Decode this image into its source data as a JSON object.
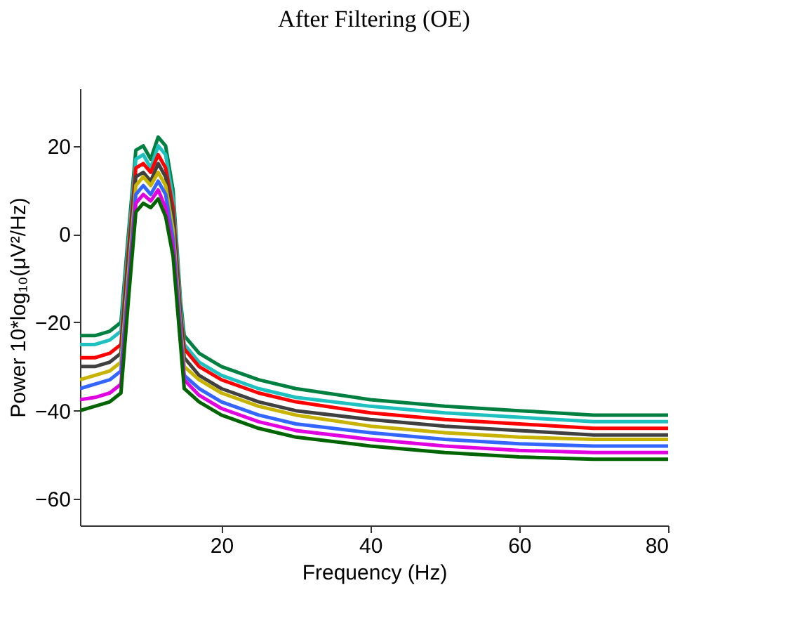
{
  "chart_data": {
    "type": "line",
    "title": "After Filtering (OE)",
    "xlabel": "Frequency (Hz)",
    "ylabel": "Power 10*log₁₀(μV²/Hz)",
    "x": [
      1,
      3,
      5,
      6.5,
      7.5,
      8.5,
      9.5,
      10.5,
      11.5,
      12.5,
      13.5,
      14.5,
      15,
      17,
      20,
      25,
      30,
      40,
      50,
      60,
      70,
      80
    ],
    "series": [
      {
        "color": "#008040",
        "values": [
          -23,
          -23,
          -22,
          -20,
          0,
          19,
          20,
          17,
          22,
          20,
          10,
          -15,
          -23,
          -27,
          -30,
          -33,
          -35,
          -37.5,
          -39,
          -40,
          -41,
          -41
        ]
      },
      {
        "color": "#1fc0c0",
        "values": [
          -25,
          -25,
          -24,
          -22,
          -2,
          17,
          18,
          15,
          20,
          18,
          8,
          -16,
          -25,
          -29,
          -32,
          -35,
          -37,
          -39,
          -40.5,
          -41.5,
          -42.5,
          -42.5
        ]
      },
      {
        "color": "#ff0000",
        "values": [
          -28,
          -28,
          -27,
          -25,
          -4,
          15,
          16,
          14,
          18,
          15,
          6,
          -18,
          -26,
          -30,
          -33,
          -36,
          -38,
          -40.5,
          -42,
          -43,
          -44,
          -44
        ]
      },
      {
        "color": "#404040",
        "values": [
          -30,
          -30,
          -29,
          -27,
          -6,
          13,
          14,
          12,
          16,
          13,
          4,
          -19,
          -28,
          -32,
          -35,
          -38,
          -40,
          -42,
          -43.5,
          -44.5,
          -45.5,
          -45.5
        ]
      },
      {
        "color": "#c8b400",
        "values": [
          -33,
          -32,
          -31,
          -29,
          -9,
          11,
          13,
          11,
          14,
          11,
          1,
          -21,
          -30,
          -33,
          -36,
          -39,
          -41,
          -43.5,
          -45,
          -46,
          -46.5,
          -46.5
        ]
      },
      {
        "color": "#3366ff",
        "values": [
          -35,
          -34,
          -33,
          -31,
          -11,
          9,
          11,
          9,
          12,
          9,
          -1,
          -22,
          -32,
          -35,
          -38,
          -41,
          -43,
          -45,
          -46.5,
          -47.5,
          -48,
          -48
        ]
      },
      {
        "color": "#e000e0",
        "values": [
          -37.5,
          -37,
          -36,
          -34,
          -13,
          7,
          9,
          7.5,
          10,
          6,
          -3,
          -23.5,
          -33,
          -36.5,
          -39.5,
          -42.5,
          -44.5,
          -46.5,
          -48,
          -49,
          -49.5,
          -49.5
        ]
      },
      {
        "color": "#006400",
        "values": [
          -40,
          -39,
          -38,
          -36,
          -15,
          5,
          7,
          6,
          8,
          4,
          -5,
          -25,
          -35,
          -38,
          -41,
          -44,
          -46,
          -48,
          -49.5,
          -50.5,
          -51,
          -51
        ]
      }
    ],
    "xlim": [
      1,
      80
    ],
    "ylim": [
      -66,
      33
    ],
    "xticks": [
      20,
      40,
      60,
      80
    ],
    "yticks": [
      -60,
      -40,
      -20,
      0,
      20
    ],
    "grid": false,
    "legend": false,
    "marker": "none",
    "line_style": "solid"
  }
}
